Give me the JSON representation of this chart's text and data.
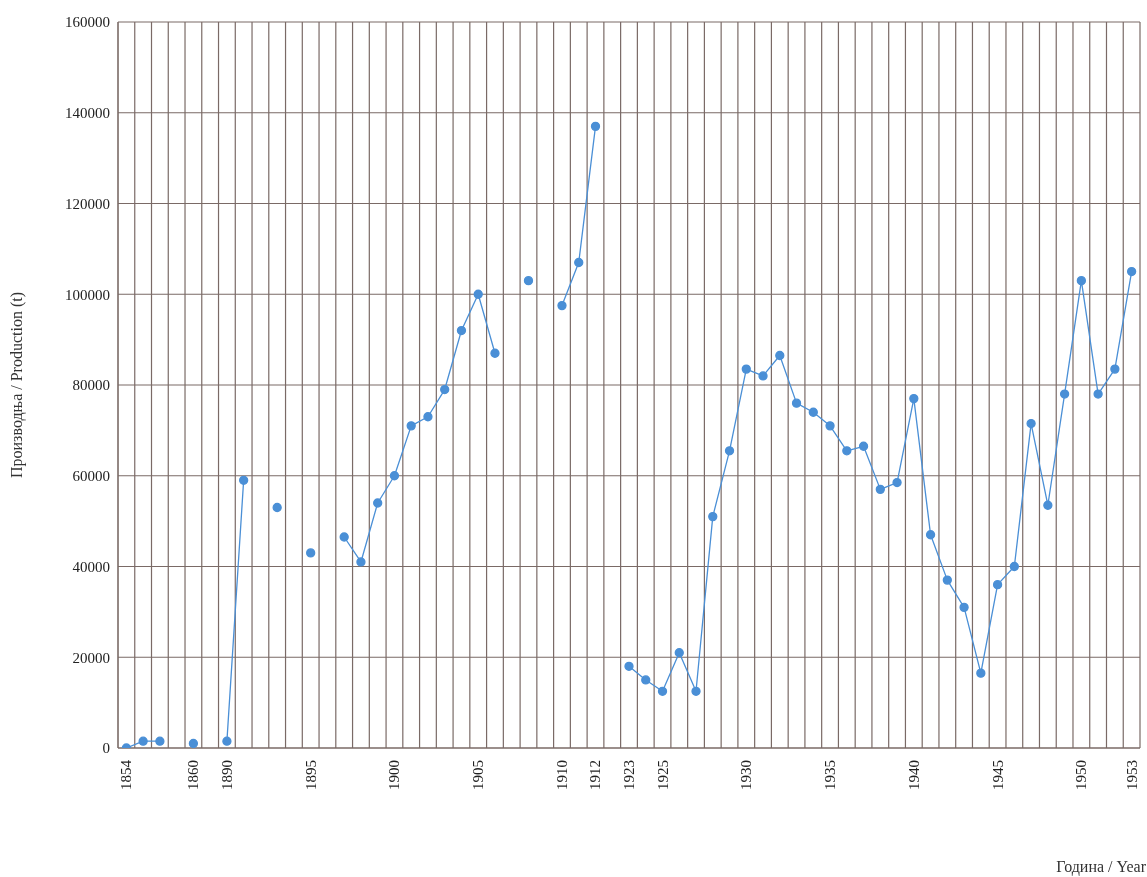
{
  "chart_data": {
    "type": "line",
    "xlabel": "Година / Year",
    "ylabel": "Производња / Production (t)",
    "categories": [
      "1854",
      null,
      null,
      null,
      "1860",
      null,
      "1890",
      null,
      null,
      null,
      null,
      "1895",
      null,
      null,
      null,
      null,
      "1900",
      null,
      null,
      null,
      null,
      "1905",
      null,
      null,
      null,
      null,
      "1910",
      null,
      "1912",
      null,
      "1923",
      null,
      "1925",
      null,
      null,
      null,
      null,
      "1930",
      null,
      null,
      null,
      null,
      "1935",
      null,
      null,
      null,
      null,
      "1940",
      null,
      null,
      null,
      null,
      "1945",
      null,
      null,
      null,
      null,
      "1950",
      null,
      null,
      "1953"
    ],
    "series": [
      {
        "color": "#4a8fd6",
        "values": [
          0,
          1500,
          1500,
          null,
          1000,
          null,
          1500,
          59000,
          null,
          53000,
          null,
          43000,
          null,
          46500,
          41000,
          54000,
          60000,
          71000,
          73000,
          79000,
          92000,
          100000,
          87000,
          null,
          103000,
          null,
          97500,
          107000,
          137000,
          null,
          18000,
          15000,
          12500,
          21000,
          12500,
          51000,
          65500,
          83500,
          82000,
          86500,
          76000,
          74000,
          71000,
          65500,
          66500,
          57000,
          58500,
          77000,
          47000,
          37000,
          31000,
          16500,
          36000,
          40000,
          71500,
          53500,
          78000,
          103000,
          78000,
          83500,
          105000
        ]
      }
    ],
    "ylim": [
      0,
      160000
    ],
    "yticks": [
      0,
      20000,
      40000,
      60000,
      80000,
      100000,
      120000,
      140000,
      160000
    ],
    "grid": true,
    "marker": "circle",
    "line_style": "solid"
  }
}
